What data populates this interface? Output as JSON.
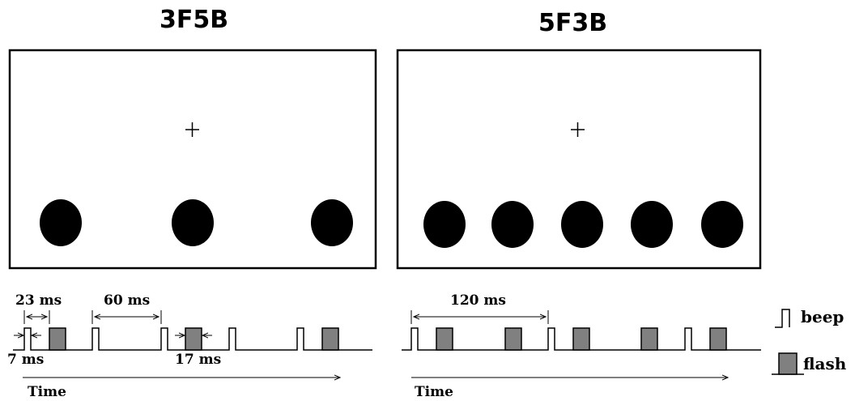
{
  "panels": [
    {
      "title": "3F5B",
      "flashes": 3,
      "beeps": 5
    },
    {
      "title": "5F3B",
      "flashes": 5,
      "beeps": 3
    }
  ],
  "annotations": {
    "interval_23": "23 ms",
    "interval_60": "60 ms",
    "beep_duration": "7 ms",
    "flash_duration": "17 ms",
    "interval_120": "120 ms",
    "time_left": "Time",
    "time_right": "Time"
  },
  "legend": {
    "beep": "beep",
    "flash": "flash"
  },
  "colors": {
    "flash_fill": "#808080",
    "ink": "#000000",
    "background": "#ffffff"
  }
}
